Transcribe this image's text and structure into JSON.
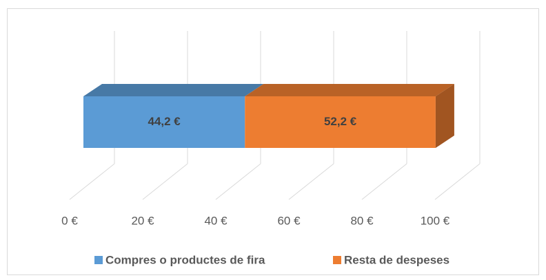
{
  "chart_data": {
    "type": "bar3d_stacked_horizontal",
    "series": [
      {
        "name": "Compres o productes de fira",
        "color": "#5b9bd5",
        "values": [
          44.2
        ],
        "value_labels": [
          "44,2 €"
        ]
      },
      {
        "name": "Resta de despeses",
        "color": "#ed7d31",
        "values": [
          52.2
        ],
        "value_labels": [
          "52,2 €"
        ]
      }
    ],
    "xlim": [
      0,
      100
    ],
    "xticks": [
      {
        "value": 0,
        "label": "0 €"
      },
      {
        "value": 20,
        "label": "20 €"
      },
      {
        "value": 40,
        "label": "40 €"
      },
      {
        "value": 60,
        "label": "60 €"
      },
      {
        "value": 80,
        "label": "80 €"
      },
      {
        "value": 100,
        "label": "100 €"
      }
    ],
    "grid": true,
    "legend": "bottom"
  }
}
